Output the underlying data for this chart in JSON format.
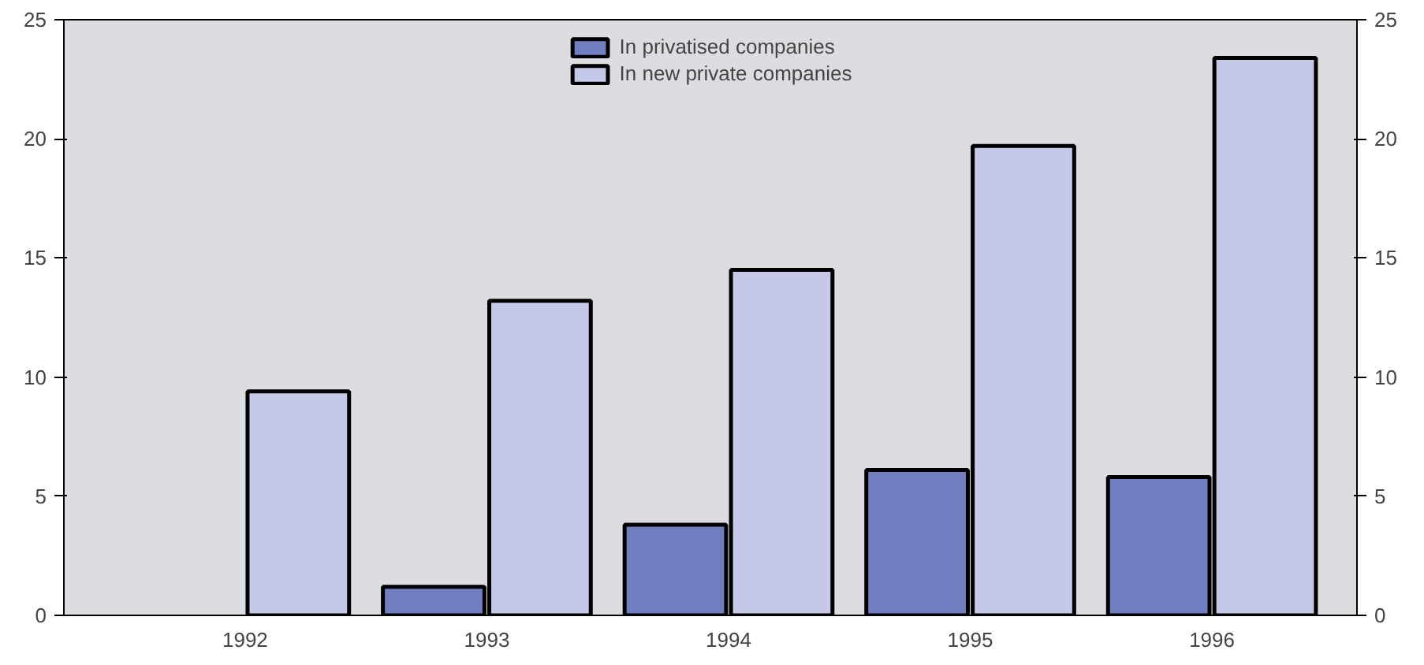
{
  "chart_data": {
    "type": "bar",
    "categories": [
      "1992",
      "1993",
      "1994",
      "1995",
      "1996"
    ],
    "series": [
      {
        "name": "In privatised companies",
        "color": "#6f7fc0",
        "values": [
          null,
          1.2,
          3.8,
          6.1,
          5.8
        ]
      },
      {
        "name": "In new private companies",
        "color": "#c5c8e6",
        "values": [
          9.4,
          13.2,
          14.5,
          19.7,
          23.4
        ]
      }
    ],
    "ylim": [
      0,
      25
    ],
    "yticks": [
      0,
      5,
      10,
      15,
      20,
      25
    ],
    "y2lim": [
      0,
      25
    ],
    "y2ticks": [
      0,
      5,
      10,
      15,
      20,
      25
    ],
    "grid": false,
    "legend": "top"
  }
}
